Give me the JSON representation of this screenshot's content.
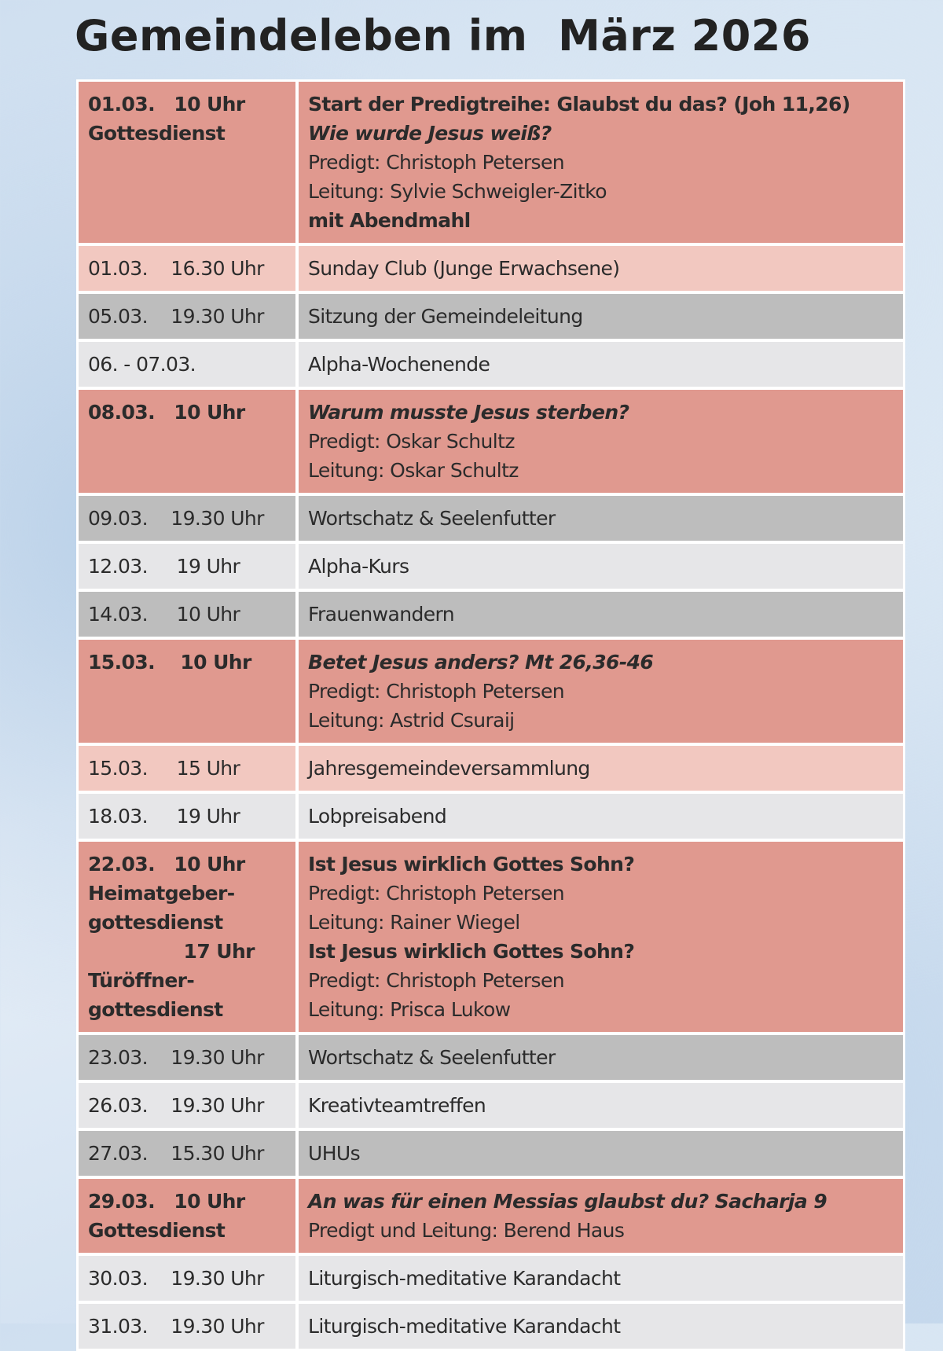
{
  "title": "Gemeindeleben im  März 2026",
  "colors": {
    "highlight": "#e0998f",
    "light_highlight": "#f2c8c0",
    "gray": "#bdbdbd",
    "light_gray": "#e6e6e8"
  },
  "rows": [
    {
      "type": "red",
      "left": [
        {
          "t": "01.03.   10 Uhr",
          "s": "b"
        },
        {
          "t": "Gottesdienst",
          "s": "b"
        }
      ],
      "right": [
        {
          "t": "Start der Predigtreihe: Glaubst du das? (Joh 11,26)",
          "s": "b"
        },
        {
          "t": "Wie wurde Jesus weiß?",
          "s": "i"
        },
        {
          "t": "Predigt: Christoph Petersen",
          "s": ""
        },
        {
          "t": "Leitung: Sylvie Schweigler-Zitko",
          "s": ""
        },
        {
          "t": "mit Abendmahl",
          "s": "b"
        }
      ]
    },
    {
      "type": "pink",
      "left": [
        {
          "t": "01.03.    16.30 Uhr",
          "s": ""
        }
      ],
      "right": [
        {
          "t": "Sunday Club (Junge Erwachsene)",
          "s": ""
        }
      ]
    },
    {
      "type": "gray",
      "left": [
        {
          "t": "05.03.    19.30 Uhr",
          "s": ""
        }
      ],
      "right": [
        {
          "t": "Sitzung der Gemeindeleitung",
          "s": ""
        }
      ]
    },
    {
      "type": "light",
      "left": [
        {
          "t": "06. - 07.03.",
          "s": ""
        }
      ],
      "right": [
        {
          "t": "Alpha-Wochenende",
          "s": ""
        }
      ]
    },
    {
      "type": "red",
      "left": [
        {
          "t": "08.03.   10 Uhr",
          "s": "b"
        }
      ],
      "right": [
        {
          "t": "Warum musste Jesus sterben?",
          "s": "i"
        },
        {
          "t": "Predigt: Oskar Schultz",
          "s": ""
        },
        {
          "t": "Leitung: Oskar Schultz",
          "s": ""
        }
      ]
    },
    {
      "type": "gray",
      "left": [
        {
          "t": "09.03.    19.30 Uhr",
          "s": ""
        }
      ],
      "right": [
        {
          "t": "Wortschatz & Seelenfutter",
          "s": ""
        }
      ]
    },
    {
      "type": "light",
      "left": [
        {
          "t": "12.03.     19 Uhr",
          "s": ""
        }
      ],
      "right": [
        {
          "t": "Alpha-Kurs",
          "s": ""
        }
      ]
    },
    {
      "type": "gray",
      "left": [
        {
          "t": "14.03.     10 Uhr",
          "s": ""
        }
      ],
      "right": [
        {
          "t": "Frauenwandern",
          "s": ""
        }
      ]
    },
    {
      "type": "red",
      "left": [
        {
          "t": "15.03.    10 Uhr",
          "s": "b"
        }
      ],
      "right": [
        {
          "t": "Betet Jesus anders? Mt 26,36-46",
          "s": "i"
        },
        {
          "t": "Predigt: Christoph Petersen",
          "s": ""
        },
        {
          "t": "Leitung: Astrid Csuraij",
          "s": ""
        }
      ]
    },
    {
      "type": "pink",
      "left": [
        {
          "t": "15.03.     15 Uhr",
          "s": ""
        }
      ],
      "right": [
        {
          "t": "Jahresgemeindeversammlung",
          "s": ""
        }
      ]
    },
    {
      "type": "light",
      "left": [
        {
          "t": "18.03.     19 Uhr",
          "s": ""
        }
      ],
      "right": [
        {
          "t": "Lobpreisabend",
          "s": ""
        }
      ]
    },
    {
      "type": "red",
      "left": [
        {
          "t": "22.03.   10 Uhr",
          "s": "b"
        },
        {
          "t": "Heimatgeber-",
          "s": "b"
        },
        {
          "t": "gottesdienst",
          "s": "b"
        },
        {
          "t": "               17 Uhr",
          "s": "b"
        },
        {
          "t": "Türöffner-",
          "s": "b"
        },
        {
          "t": "gottesdienst",
          "s": "b"
        }
      ],
      "right": [
        {
          "t": "Ist Jesus wirklich Gottes Sohn?",
          "s": "b"
        },
        {
          "t": "Predigt: Christoph Petersen",
          "s": ""
        },
        {
          "t": "Leitung: Rainer Wiegel",
          "s": ""
        },
        {
          "t": "Ist Jesus wirklich Gottes Sohn?",
          "s": "b"
        },
        {
          "t": "Predigt: Christoph Petersen",
          "s": ""
        },
        {
          "t": "Leitung: Prisca Lukow",
          "s": ""
        }
      ]
    },
    {
      "type": "gray",
      "left": [
        {
          "t": "23.03.    19.30 Uhr",
          "s": ""
        }
      ],
      "right": [
        {
          "t": "Wortschatz & Seelenfutter",
          "s": ""
        }
      ]
    },
    {
      "type": "light",
      "left": [
        {
          "t": "26.03.    19.30 Uhr",
          "s": ""
        }
      ],
      "right": [
        {
          "t": "Kreativteamtreffen",
          "s": ""
        }
      ]
    },
    {
      "type": "gray",
      "left": [
        {
          "t": "27.03.    15.30 Uhr",
          "s": ""
        }
      ],
      "right": [
        {
          "t": "UHUs",
          "s": ""
        }
      ]
    },
    {
      "type": "red",
      "left": [
        {
          "t": "29.03.   10 Uhr",
          "s": "b"
        },
        {
          "t": "Gottesdienst",
          "s": "b"
        }
      ],
      "right": [
        {
          "t": "An was für einen Messias glaubst du? Sacharja 9",
          "s": "i"
        },
        {
          "t": "Predigt und Leitung: Berend Haus",
          "s": ""
        }
      ]
    },
    {
      "type": "light",
      "left": [
        {
          "t": "30.03.    19.30 Uhr",
          "s": ""
        }
      ],
      "right": [
        {
          "t": "Liturgisch-meditative Karandacht",
          "s": ""
        }
      ]
    },
    {
      "type": "light",
      "left": [
        {
          "t": "31.03.    19.30 Uhr",
          "s": ""
        }
      ],
      "right": [
        {
          "t": "Liturgisch-meditative Karandacht",
          "s": ""
        }
      ]
    }
  ]
}
